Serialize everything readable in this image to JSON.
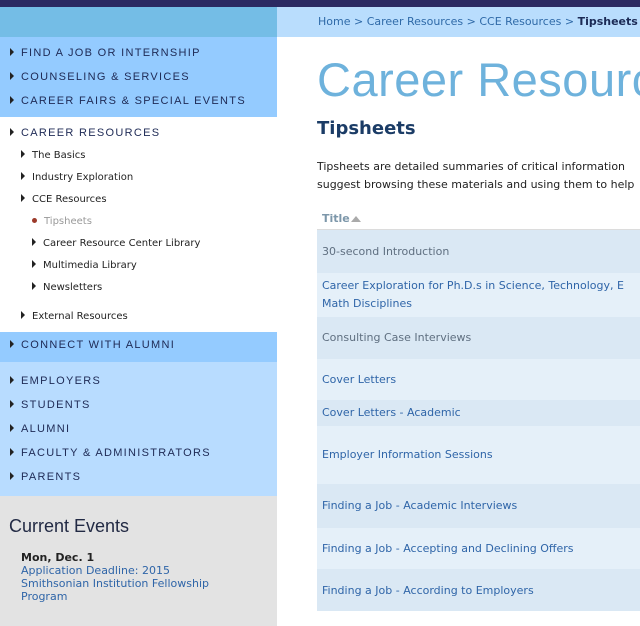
{
  "breadcrumb": {
    "items": [
      "Home",
      "Career Resources",
      "CCE Resources"
    ],
    "current": "Tipsheets",
    "separator": ">"
  },
  "sidebar": {
    "main_nav": [
      "FIND A JOB OR INTERNSHIP",
      "COUNSELING & SERVICES",
      "CAREER FAIRS & SPECIAL EVENTS"
    ],
    "career_resources": {
      "label": "CAREER RESOURCES",
      "items": [
        "The Basics",
        "Industry Exploration",
        "CCE Resources"
      ],
      "cce_items": [
        "Tipsheets",
        "Career Resource Center Library",
        "Multimedia Library",
        "Newsletters"
      ],
      "external": "External Resources"
    },
    "connect": "CONNECT WITH ALUMNI",
    "audience": [
      "EMPLOYERS",
      "STUDENTS",
      "ALUMNI",
      "FACULTY & ADMINISTRATORS",
      "PARENTS"
    ]
  },
  "events": {
    "title": "Current Events",
    "date": "Mon, Dec. 1",
    "link": "Application Deadline: 2015 Smithsonian Institution Fellowship Program"
  },
  "main": {
    "section_title": "Career Resources",
    "page_title": "Tipsheets",
    "description": [
      "Tipsheets are detailed summaries of critical information",
      "suggest browsing these materials and using them to help"
    ],
    "table_header": "Title",
    "rows": [
      {
        "title": "30-second Introduction"
      },
      {
        "title": "Career Exploration for Ph.D.s in Science, Technology, E",
        "title2": "Math Disciplines"
      },
      {
        "title": "Consulting Case Interviews"
      },
      {
        "title": "Cover Letters"
      },
      {
        "title": "Cover Letters - Academic"
      },
      {
        "title": "Employer Information Sessions"
      },
      {
        "title": "Finding a Job - Academic Interviews"
      },
      {
        "title": "Finding a Job - Accepting and Declining Offers"
      },
      {
        "title": "Finding a Job - According to Employers"
      }
    ]
  },
  "colors": {
    "top_bar": "#2b2a62",
    "nav_blue": "#94cbff",
    "nav_light": "#b8dcff",
    "heading_blue": "#6eb2dc",
    "link": "#2f65a8"
  }
}
